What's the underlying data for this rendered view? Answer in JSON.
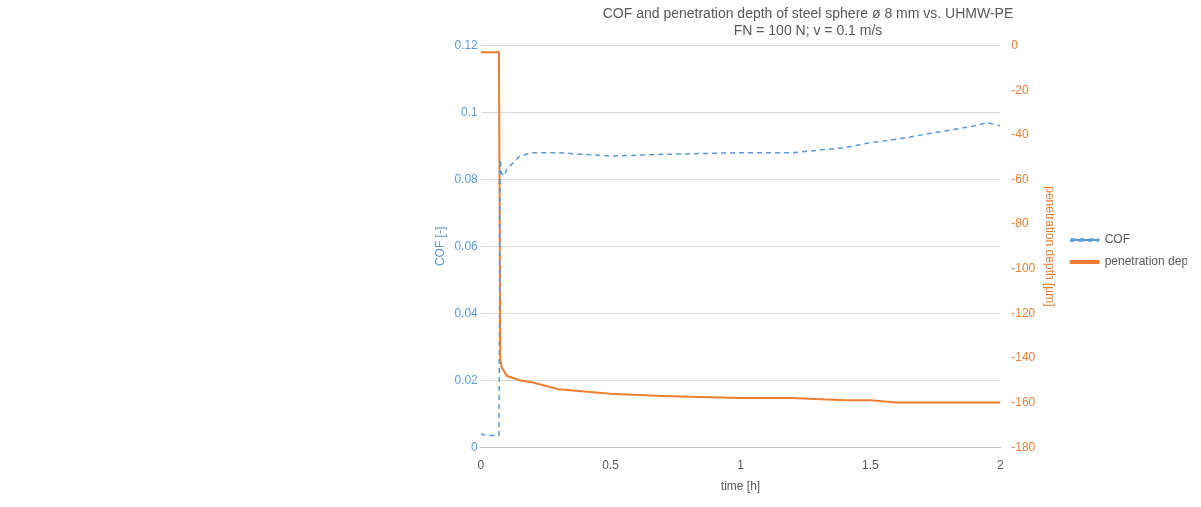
{
  "chart_data": {
    "type": "line",
    "title": "COF and penetration depth of steel sphere ø 8 mm vs. UHMW-PE",
    "subtitle": "FN = 100 N; v = 0.1 m/s",
    "x_label": "time [h]",
    "y_label": "COF [-]",
    "y2_label": "penetration depth [µm]",
    "x": [
      0,
      0.02,
      0.05,
      0.07,
      0.075,
      0.08,
      0.09,
      0.1,
      0.15,
      0.2,
      0.3,
      0.5,
      0.7,
      1.0,
      1.2,
      1.4,
      1.5,
      1.6,
      1.75,
      1.9,
      1.95,
      2.0
    ],
    "series": [
      {
        "name": "COF",
        "color": "#5b9bd5",
        "line_style": "dashed",
        "values": [
          0.004,
          0.0035,
          0.0035,
          0.0035,
          0.086,
          0.082,
          0.081,
          0.083,
          0.087,
          0.088,
          0.088,
          0.087,
          0.0875,
          0.088,
          0.088,
          0.0895,
          0.091,
          0.092,
          0.094,
          0.096,
          0.097,
          0.096
        ]
      },
      {
        "name": "penetration depth",
        "color": "#ed7d31",
        "line_style": "solid",
        "axis": "y2",
        "values": [
          -3,
          -3,
          -3,
          -3,
          -140,
          -144,
          -146,
          -148,
          -150,
          -151,
          -154,
          -156,
          -157,
          -158,
          -158,
          -159,
          -159,
          -160,
          -160,
          -160,
          -160,
          -160
        ]
      }
    ],
    "xlim": [
      0,
      2
    ],
    "xticks": [
      0,
      0.5,
      1,
      1.5,
      2
    ],
    "ylim": [
      0,
      0.12
    ],
    "yticks": [
      0,
      0.02,
      0.04,
      0.06,
      0.08,
      0.1,
      0.12
    ],
    "y2lim": [
      -180,
      0
    ],
    "y2ticks": [
      -180,
      -160,
      -140,
      -120,
      -100,
      -80,
      -60,
      -40,
      -20,
      0
    ],
    "grid": true,
    "legend": "right"
  }
}
